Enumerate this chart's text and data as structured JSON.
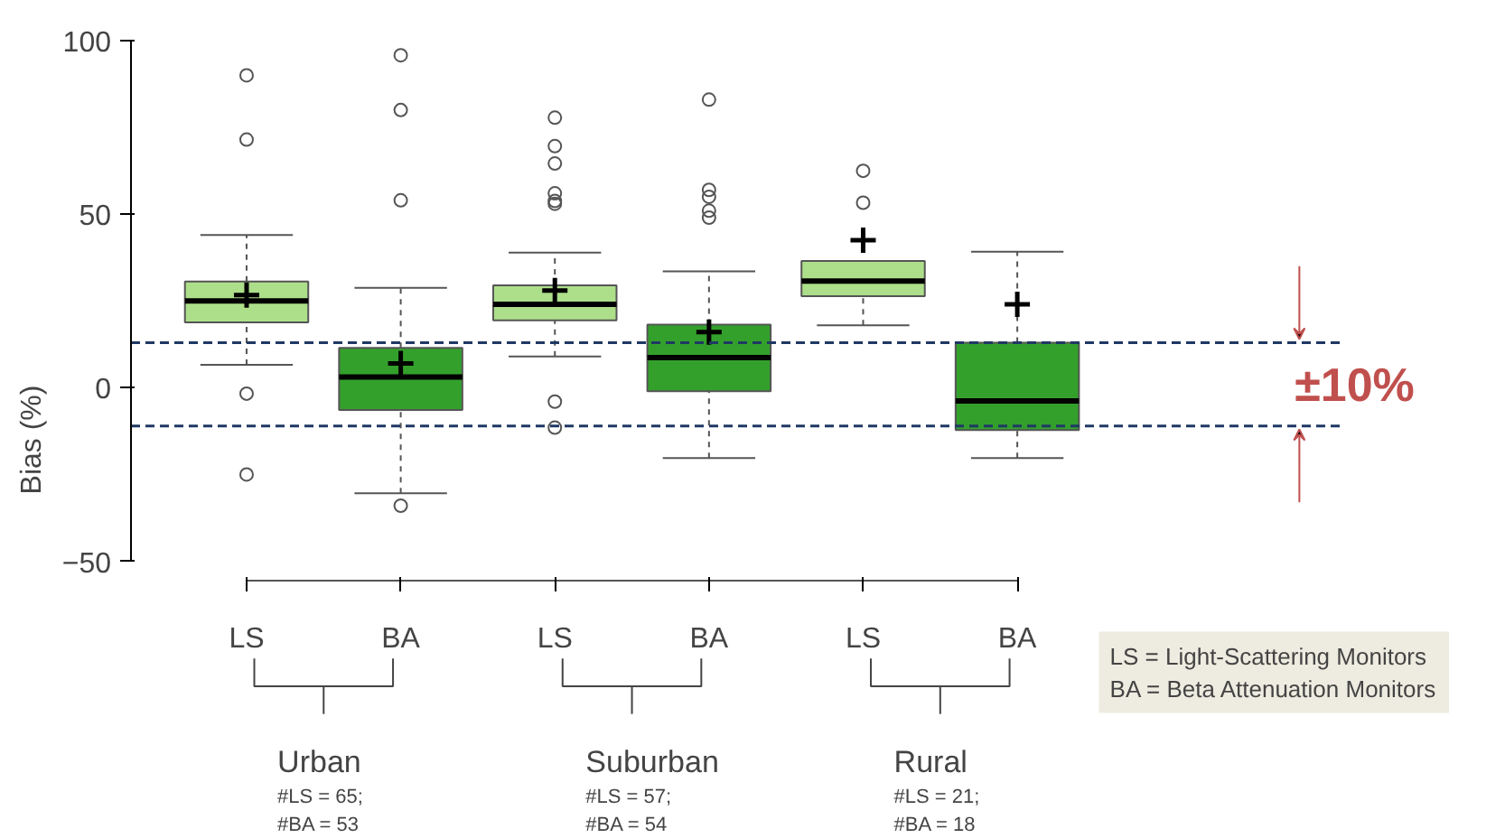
{
  "chart_data": {
    "type": "box",
    "ylabel": "Bias (%)",
    "categories": [
      "LS",
      "BA",
      "LS",
      "BA",
      "LS",
      "BA"
    ],
    "colors": [
      "#addf8a",
      "#33a02c",
      "#addf8a",
      "#33a02c",
      "#addf8a",
      "#33a02c"
    ],
    "boxes": [
      {
        "low": 6.6,
        "q1": 18.8,
        "median": 25,
        "q3": 30.6,
        "high": 44,
        "mean": 26.7,
        "outliers": [
          90,
          71.5,
          -1.7,
          -25
        ]
      },
      {
        "low": -30.4,
        "q1": -6.4,
        "median": 3.1,
        "q3": 11.5,
        "high": 28.8,
        "mean": 7,
        "outliers": [
          95.8,
          80,
          54,
          -34
        ]
      },
      {
        "low": 9,
        "q1": 19.4,
        "median": 24,
        "q3": 29.5,
        "high": 38.9,
        "mean": 28,
        "outliers": [
          77.8,
          69.6,
          64.6,
          56,
          53.8,
          53,
          -4,
          -11.5
        ]
      },
      {
        "low": -20.3,
        "q1": -1,
        "median": 8.7,
        "q3": 18.2,
        "high": 33.5,
        "mean": 16,
        "outliers": [
          83,
          57,
          55,
          51,
          49
        ]
      },
      {
        "low": 18,
        "q1": 26.4,
        "median": 30.7,
        "q3": 36.5,
        "high": 36.5,
        "mean": 42.5,
        "outliers": [
          62.5,
          53.3
        ]
      },
      {
        "low": -20.3,
        "q1": -12.2,
        "median": -3.8,
        "q3": 13,
        "high": 39.2,
        "mean": 24
      }
    ],
    "ylim": [
      -50,
      100
    ],
    "yticks": [
      -50,
      0,
      50,
      100
    ],
    "grid": false,
    "ref_lines": [
      {
        "axis": "y",
        "value": 13,
        "color": "#1f3864",
        "line_style": "dashed"
      },
      {
        "axis": "y",
        "value": -11,
        "color": "#1f3864",
        "line_style": "dashed"
      }
    ],
    "annotations": [
      "±10%",
      "Urban",
      "#LS = 65;",
      "#BA = 53",
      "Suburban",
      "#LS = 57;",
      "#BA = 54",
      "Rural",
      "#LS = 21;",
      "#BA = 18",
      "LS  = Light-Scattering Monitors",
      "BA = Beta Attenuation Monitors"
    ]
  }
}
